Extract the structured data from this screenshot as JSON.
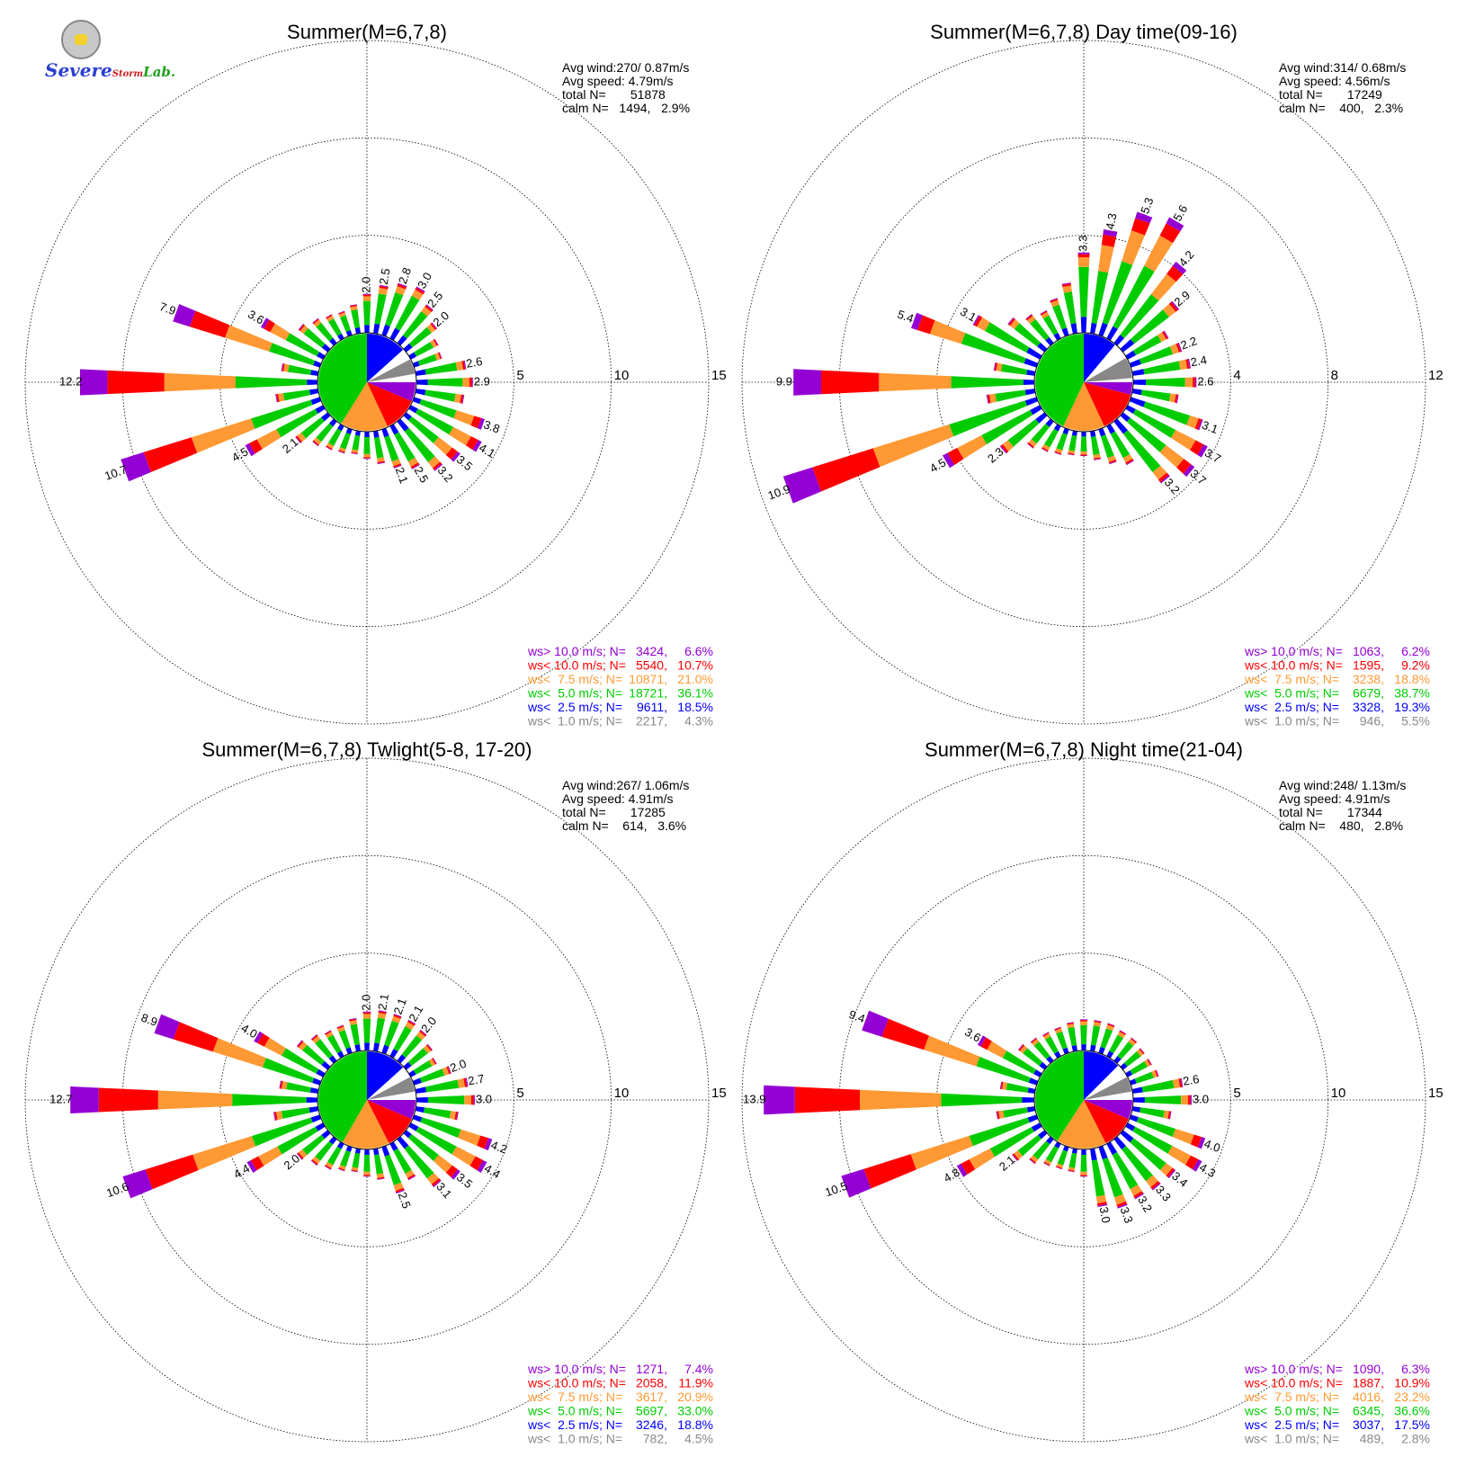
{
  "logo": {
    "text_severe": "Severe",
    "text_storm": "Storm",
    "text_lab": "Lab."
  },
  "colors": {
    "ge10": "#9400d3",
    "lt10": "#ff0000",
    "lt75": "#ff9933",
    "lt5": "#00cc00",
    "lt25": "#0000ff",
    "lt1": "#888888"
  },
  "chart_data": [
    {
      "type": "polar-stacked-bar",
      "title": "Summer(M=6,7,8)",
      "info": [
        "Avg wind:270/ 0.87m/s",
        "Avg speed: 4.79m/s",
        "total N=       51878",
        "calm N=   1494,   2.9%"
      ],
      "rings": [
        5,
        10,
        15
      ],
      "ring_labels": [
        "5",
        "10",
        "15"
      ],
      "labels": {
        "0": "2.0",
        "10": "2.5",
        "20": "2.8",
        "30": "3.0",
        "40": "2.5",
        "50": "2.0",
        "80": "2.6",
        "90": "2.9",
        "110": "3.8",
        "120": "4.1",
        "130": "3.5",
        "140": "3.2",
        "150": "2.5",
        "160": "2.1",
        "230": "2.1",
        "240": "4.5",
        "250": "10.7",
        "270": "12.2",
        "290": "7.9",
        "300": "3.6"
      },
      "totals": [
        2.0,
        2.5,
        2.8,
        3.0,
        2.5,
        2.0,
        1.6,
        1.5,
        2.6,
        2.9,
        2.5,
        3.8,
        4.1,
        3.5,
        3.2,
        2.5,
        2.1,
        1.7,
        1.4,
        1.2,
        1.3,
        1.4,
        1.6,
        2.1,
        4.5,
        10.7,
        2.2,
        12.2,
        1.9,
        7.9,
        3.6,
        1.9,
        1.6,
        1.4,
        1.3,
        1.5
      ],
      "pie": {
        "n_start": 0,
        "n_end": 48,
        "fill": "#0000ff",
        "gray": [
          62,
          80
        ],
        "purple": [
          90,
          113
        ],
        "red": [
          113,
          155
        ],
        "orange": [
          155,
          212
        ],
        "green": [
          212,
          360
        ]
      },
      "legend": [
        {
          "label": "ws> 10.0 m/s; N=",
          "n": "3424,",
          "pct": "6.6%"
        },
        {
          "label": "ws< 10.0 m/s; N=",
          "n": "5540,",
          "pct": "10.7%"
        },
        {
          "label": "ws<  7.5 m/s; N=",
          "n": "10871,",
          "pct": "21.0%"
        },
        {
          "label": "ws<  5.0 m/s; N=",
          "n": "18721,",
          "pct": "36.1%"
        },
        {
          "label": "ws<  2.5 m/s; N=",
          "n": "9611,",
          "pct": "18.5%"
        },
        {
          "label": "ws<  1.0 m/s; N=",
          "n": "2217,",
          "pct": "4.3%"
        }
      ]
    },
    {
      "type": "polar-stacked-bar",
      "title": "Summer(M=6,7,8) Day time(09-16)",
      "info": [
        "Avg wind:314/ 0.68m/s",
        "Avg speed: 4.56m/s",
        "total N=       17249",
        "calm N=    400,   2.3%"
      ],
      "rings": [
        4,
        8,
        12
      ],
      "ring_labels": [
        "4",
        "8",
        "12"
      ],
      "labels": {
        "0": "3.3",
        "10": "4.3",
        "20": "5.3",
        "30": "5.6",
        "40": "4.2",
        "50": "2.9",
        "70": "2.2",
        "80": "2.4",
        "90": "2.6",
        "110": "3.1",
        "120": "3.7",
        "130": "3.7",
        "140": "3.2",
        "230": "2.3",
        "240": "4.5",
        "250": "10.9",
        "270": "9.9",
        "290": "5.4",
        "300": "3.1"
      },
      "totals": [
        3.3,
        4.3,
        5.3,
        5.6,
        4.2,
        2.9,
        1.9,
        2.2,
        2.4,
        2.6,
        1.9,
        3.1,
        3.7,
        3.7,
        3.2,
        1.8,
        1.5,
        1.2,
        1.0,
        1.0,
        1.1,
        1.2,
        1.4,
        2.3,
        4.5,
        10.9,
        2.0,
        9.9,
        1.7,
        5.4,
        3.1,
        1.9,
        1.5,
        1.3,
        1.6,
        2.1
      ],
      "pie": {
        "n_start": 0,
        "n_end": 40,
        "fill": "#0000ff",
        "gray": [
          60,
          85
        ],
        "purple": [
          90,
          105
        ],
        "red": [
          105,
          155
        ],
        "orange": [
          155,
          205
        ],
        "green": [
          205,
          360
        ]
      },
      "legend": [
        {
          "label": "ws> 10.0 m/s; N=",
          "n": "1063,",
          "pct": "6.2%"
        },
        {
          "label": "ws< 10.0 m/s; N=",
          "n": "1595,",
          "pct": "9.2%"
        },
        {
          "label": "ws<  7.5 m/s; N=",
          "n": "3238,",
          "pct": "18.8%"
        },
        {
          "label": "ws<  5.0 m/s; N=",
          "n": "6679,",
          "pct": "38.7%"
        },
        {
          "label": "ws<  2.5 m/s; N=",
          "n": "3328,",
          "pct": "19.3%"
        },
        {
          "label": "ws<  1.0 m/s; N=",
          "n": "946,",
          "pct": "5.5%"
        }
      ]
    },
    {
      "type": "polar-stacked-bar",
      "title": "Summer(M=6,7,8) Twlight(5-8, 17-20)",
      "info": [
        "Avg wind:267/ 1.06m/s",
        "Avg speed: 4.91m/s",
        "total N=       17285",
        "calm N=    614,   3.6%"
      ],
      "rings": [
        5,
        10,
        15
      ],
      "ring_labels": [
        "5",
        "10",
        "15"
      ],
      "labels": {
        "0": "2.0",
        "10": "2.1",
        "20": "2.1",
        "30": "2.1",
        "40": "2.0",
        "70": "2.0",
        "80": "2.7",
        "90": "3.0",
        "110": "4.2",
        "120": "4.4",
        "130": "3.5",
        "140": "3.1",
        "160": "2.5",
        "230": "2.0",
        "240": "4.4",
        "250": "10.6",
        "270": "12.7",
        "290": "8.9",
        "300": "4.0"
      },
      "totals": [
        2.0,
        2.1,
        2.1,
        2.1,
        2.0,
        1.7,
        1.5,
        2.0,
        2.7,
        3.0,
        2.2,
        4.2,
        4.4,
        3.5,
        3.1,
        2.1,
        2.5,
        1.6,
        1.4,
        1.2,
        1.3,
        1.5,
        1.7,
        2.0,
        4.4,
        10.6,
        2.3,
        12.7,
        2.0,
        8.9,
        4.0,
        2.0,
        1.7,
        1.5,
        1.5,
        1.7
      ],
      "pie": {
        "n_start": 0,
        "n_end": 48,
        "fill": "#0000ff",
        "gray": [
          62,
          80
        ],
        "purple": [
          90,
          113
        ],
        "red": [
          113,
          153
        ],
        "orange": [
          153,
          210
        ],
        "green": [
          210,
          360
        ]
      },
      "legend": [
        {
          "label": "ws> 10.0 m/s; N=",
          "n": "1271,",
          "pct": "7.4%"
        },
        {
          "label": "ws< 10.0 m/s; N=",
          "n": "2058,",
          "pct": "11.9%"
        },
        {
          "label": "ws<  7.5 m/s; N=",
          "n": "3617,",
          "pct": "20.9%"
        },
        {
          "label": "ws<  5.0 m/s; N=",
          "n": "5697,",
          "pct": "33.0%"
        },
        {
          "label": "ws<  2.5 m/s; N=",
          "n": "3246,",
          "pct": "18.8%"
        },
        {
          "label": "ws<  1.0 m/s; N=",
          "n": "782,",
          "pct": "4.5%"
        }
      ]
    },
    {
      "type": "polar-stacked-bar",
      "title": "Summer(M=6,7,8) Night time(21-04)",
      "info": [
        "Avg wind:248/ 1.13m/s",
        "Avg speed: 4.91m/s",
        "total N=       17344",
        "calm N=    480,   2.8%"
      ],
      "rings": [
        5,
        10,
        15
      ],
      "ring_labels": [
        "5",
        "10",
        "15"
      ],
      "labels": {
        "80": "2.6",
        "90": "3.0",
        "110": "4.0",
        "120": "4.3",
        "130": "3.4",
        "140": "3.3",
        "150": "3.2",
        "160": "3.3",
        "170": "3.0",
        "230": "2.1",
        "240": "4.8",
        "250": "10.5",
        "270": "13.9",
        "290": "9.4",
        "300": "3.6"
      },
      "totals": [
        1.6,
        1.6,
        1.6,
        1.5,
        1.5,
        1.4,
        1.4,
        1.5,
        2.6,
        3.0,
        2.0,
        4.0,
        4.3,
        3.4,
        3.3,
        3.2,
        3.3,
        3.0,
        1.4,
        1.2,
        1.2,
        1.3,
        1.6,
        2.1,
        4.8,
        10.5,
        2.0,
        13.9,
        1.8,
        9.4,
        3.6,
        1.7,
        1.5,
        1.4,
        1.4,
        1.5
      ],
      "pie": {
        "n_start": 0,
        "n_end": 45,
        "fill": "#0000ff",
        "gray": [
          62,
          80
        ],
        "purple": [
          90,
          113
        ],
        "red": [
          113,
          153
        ],
        "orange": [
          153,
          213
        ],
        "green": [
          213,
          360
        ]
      },
      "legend": [
        {
          "label": "ws> 10.0 m/s; N=",
          "n": "1090,",
          "pct": "6.3%"
        },
        {
          "label": "ws< 10.0 m/s; N=",
          "n": "1887,",
          "pct": "10.9%"
        },
        {
          "label": "ws<  7.5 m/s; N=",
          "n": "4016,",
          "pct": "23.2%"
        },
        {
          "label": "ws<  5.0 m/s; N=",
          "n": "6345,",
          "pct": "36.6%"
        },
        {
          "label": "ws<  2.5 m/s; N=",
          "n": "3037,",
          "pct": "17.5%"
        },
        {
          "label": "ws<  1.0 m/s; N=",
          "n": "489,",
          "pct": "2.8%"
        }
      ]
    }
  ]
}
